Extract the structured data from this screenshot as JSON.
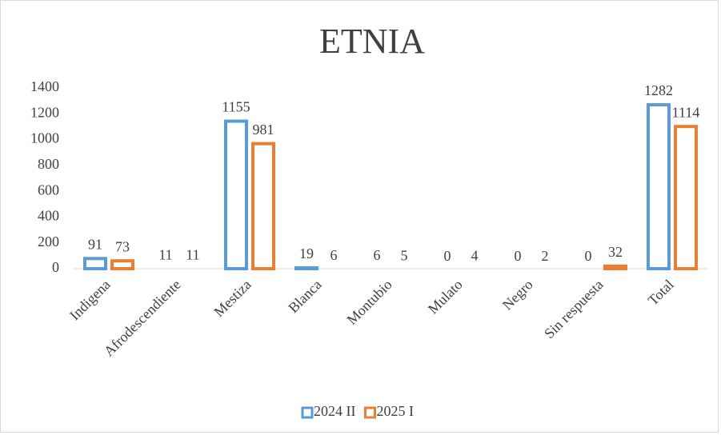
{
  "chart_data": {
    "type": "bar",
    "title": "ETNIA",
    "categories": [
      "Indigena",
      "Afrodescendiente",
      "Mestiza",
      "Blanca",
      "Montubio",
      "Mulato",
      "Negro",
      "Sin respuesta",
      "Total"
    ],
    "series": [
      {
        "name": "2024 II",
        "color": "#5b9bd5",
        "values": [
          91,
          11,
          1155,
          19,
          6,
          0,
          0,
          0,
          1282
        ]
      },
      {
        "name": "2025 I",
        "color": "#ed7d31",
        "values": [
          73,
          11,
          981,
          6,
          5,
          4,
          2,
          32,
          1114
        ]
      }
    ],
    "ylim": [
      0,
      1400
    ],
    "yticks": [
      0,
      200,
      400,
      600,
      800,
      1000,
      1200,
      1400
    ],
    "grid": false,
    "legend": "bottom"
  }
}
